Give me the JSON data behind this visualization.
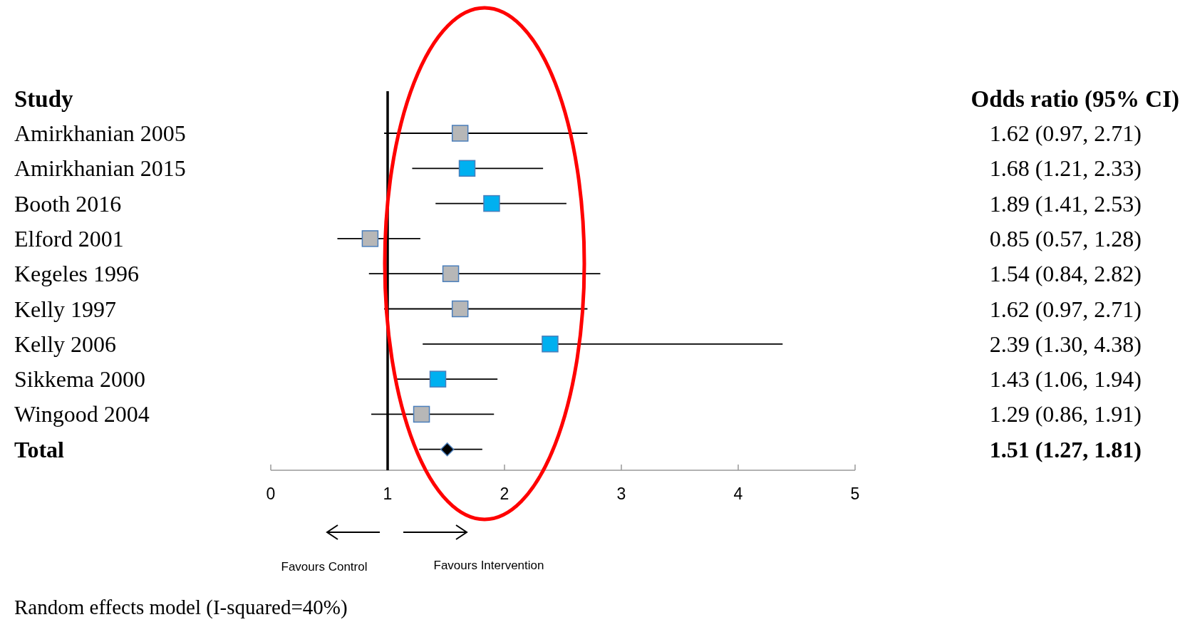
{
  "chart_data": {
    "type": "scatter",
    "orientation": "horizontal",
    "ylabel": "Study",
    "categories": [
      "Amirkhanian 2005",
      "Amirkhanian 2015",
      "Booth 2016",
      "Elford 2001",
      "Kegeles 1996",
      "Kelly 1997",
      "Kelly 2006",
      "Sikkema 2000",
      "Wingood 2004",
      "Total"
    ],
    "series": [
      {
        "color": "#b7b7b7",
        "marker": "square",
        "values": [
          1.62,
          null,
          null,
          0.85,
          1.54,
          1.62,
          null,
          null,
          1.29,
          null
        ],
        "errors": [
          [
            0.97,
            2.71
          ],
          null,
          null,
          [
            0.57,
            1.28
          ],
          [
            0.84,
            2.82
          ],
          [
            0.97,
            2.71
          ],
          null,
          null,
          [
            0.86,
            1.91
          ],
          null
        ]
      },
      {
        "color": "#00b0f0",
        "marker": "square",
        "values": [
          null,
          1.68,
          1.89,
          null,
          null,
          null,
          2.39,
          1.43,
          null,
          null
        ],
        "errors": [
          null,
          [
            1.21,
            2.33
          ],
          [
            1.41,
            2.53
          ],
          null,
          null,
          null,
          [
            1.3,
            4.38
          ],
          [
            1.06,
            1.94
          ],
          null,
          null
        ]
      },
      {
        "color": "#000000",
        "marker": "diamond",
        "values": [
          null,
          null,
          null,
          null,
          null,
          null,
          null,
          null,
          null,
          1.51
        ],
        "errors": [
          null,
          null,
          null,
          null,
          null,
          null,
          null,
          null,
          null,
          [
            1.27,
            1.81
          ]
        ]
      }
    ],
    "value_labels": [
      "1.62 (0.97, 2.71)",
      "1.68 (1.21, 2.33)",
      "1.89 (1.41, 2.53)",
      "0.85 (0.57, 1.28)",
      "1.54 (0.84, 2.82)",
      "1.62 (0.97, 2.71)",
      "2.39 (1.30, 4.38)",
      "1.43 (1.06, 1.94)",
      "1.29 (0.86, 1.91)",
      "1.51 (1.27, 1.81)"
    ],
    "xlim": [
      0,
      5
    ],
    "xticks": [
      0,
      1,
      2,
      3,
      4,
      5
    ],
    "ref_lines": [
      {
        "axis": "x",
        "value": 1,
        "color": "#000000"
      }
    ],
    "annotations": [
      "Odds ratio (95% CI)",
      "Favours Control",
      "Favours Intervention",
      "Random effects model (I-squared=40%)"
    ]
  }
}
